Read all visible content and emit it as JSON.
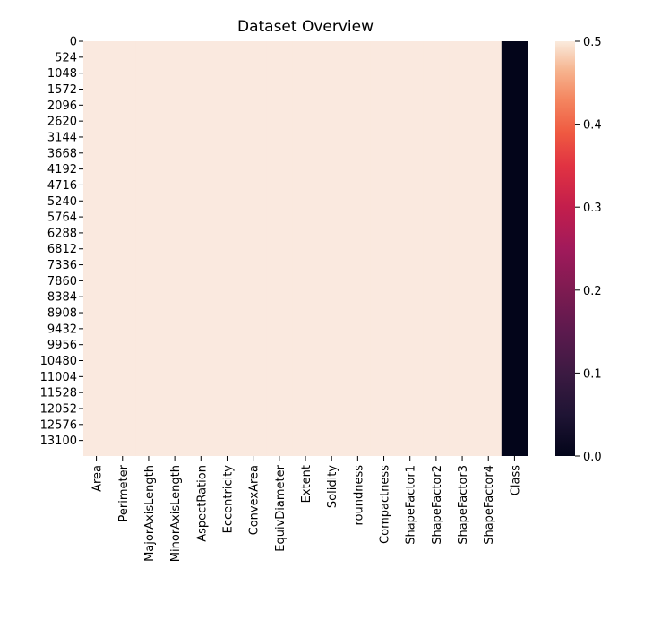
{
  "chart_data": {
    "type": "heatmap",
    "title": "Dataset Overview",
    "xlabel": "",
    "ylabel": "",
    "columns": [
      "Area",
      "Perimeter",
      "MajorAxisLength",
      "MinorAxisLength",
      "AspectRation",
      "Eccentricity",
      "ConvexArea",
      "EquivDiameter",
      "Extent",
      "Solidity",
      "roundness",
      "Compactness",
      "ShapeFactor1",
      "ShapeFactor2",
      "ShapeFactor3",
      "ShapeFactor4",
      "Class"
    ],
    "column_values": [
      0.5,
      0.5,
      0.5,
      0.5,
      0.5,
      0.5,
      0.5,
      0.5,
      0.5,
      0.5,
      0.5,
      0.5,
      0.5,
      0.5,
      0.5,
      0.5,
      0.0
    ],
    "row_count": 13611,
    "row_tick_labels": [
      "0",
      "524",
      "1048",
      "1572",
      "2096",
      "2620",
      "3144",
      "3668",
      "4192",
      "4716",
      "5240",
      "5764",
      "6288",
      "6812",
      "7336",
      "7860",
      "8384",
      "8908",
      "9432",
      "9956",
      "10480",
      "11004",
      "11528",
      "12052",
      "12576",
      "13100"
    ],
    "colorbar": {
      "min": 0.0,
      "max": 0.5,
      "ticks": [
        "0.0",
        "0.1",
        "0.2",
        "0.3",
        "0.4",
        "0.5"
      ],
      "colormap": "rocket"
    },
    "colors": {
      "value_high": "#fae9df",
      "value_low": "#03051a"
    },
    "grid": false
  }
}
